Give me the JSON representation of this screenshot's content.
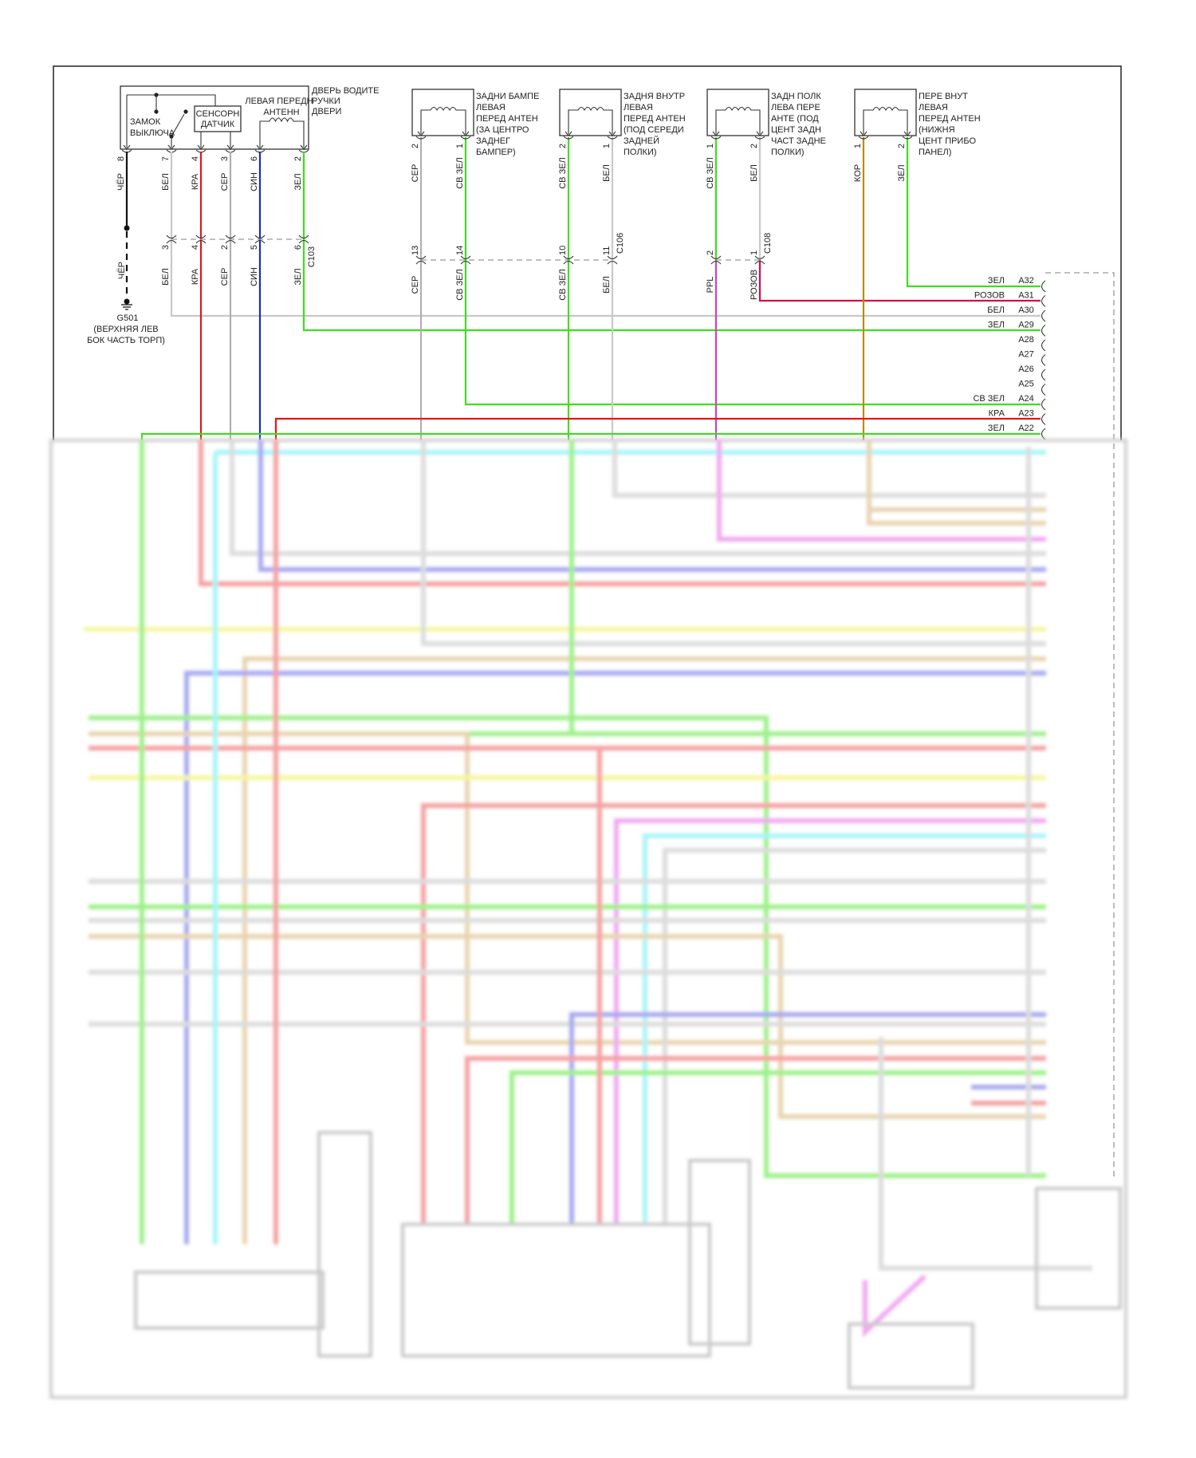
{
  "door_handle": {
    "title": [
      "ДВЕРЬ ВОДИТЕ",
      "РУЧКИ",
      "ДВЕРИ"
    ],
    "antenna": [
      "ЛЕВАЯ ПЕРЕДН",
      "АНТЕНН"
    ],
    "sensor": [
      "СЕНСОРН",
      "ДАТЧИК"
    ],
    "lock": [
      "ЗАМОК",
      "ВЫКЛЮЧА"
    ],
    "pins": [
      {
        "num": "8",
        "wire": "ЧЁР"
      },
      {
        "num": "7",
        "wire": "БЕЛ"
      },
      {
        "num": "4",
        "wire": "КРА"
      },
      {
        "num": "3",
        "wire": "СЕР"
      },
      {
        "num": "6",
        "wire": "СИН"
      },
      {
        "num": "2",
        "wire": "ЗЕЛ"
      }
    ]
  },
  "c103": {
    "name": "C103",
    "pins": [
      {
        "num": "3",
        "wire": "БЕЛ"
      },
      {
        "num": "4",
        "wire": "КРА"
      },
      {
        "num": "2",
        "wire": "СЕР"
      },
      {
        "num": "5",
        "wire": "СИН"
      },
      {
        "num": "6",
        "wire": "ЗЕЛ"
      }
    ]
  },
  "ground": {
    "wire": "ЧЁР",
    "name": "G501",
    "location": [
      "(ВЕРХНЯЯ ЛЕВ",
      "БОК ЧАСТЬ ТОРП)"
    ]
  },
  "antennas": [
    {
      "label": [
        "ЗАДНИ БАМПЕ",
        "ЛЕВАЯ",
        "ПЕРЕД АНТЕН",
        "(ЗА ЦЕНТРО",
        "ЗАДНЕГ",
        "БАМПЕР)"
      ],
      "pins": [
        {
          "num": "2",
          "wire": "СЕР"
        },
        {
          "num": "1",
          "wire": "СВ ЗЕЛ"
        }
      ],
      "connector": {
        "name": "",
        "pins": [
          {
            "num": "13",
            "wire": "СЕР"
          },
          {
            "num": "14",
            "wire": "СВ ЗЕЛ"
          }
        ]
      }
    },
    {
      "label": [
        "ЗАДНЯ ВНУТР",
        "ЛЕВАЯ",
        "ПЕРЕД АНТЕН",
        "(ПОД СЕРЕДИ",
        "ЗАДНЕЙ",
        "ПОЛКИ)"
      ],
      "pins": [
        {
          "num": "2",
          "wire": "СВ ЗЕЛ"
        },
        {
          "num": "1",
          "wire": "БЕЛ"
        }
      ],
      "connector": {
        "name": "C106",
        "pins": [
          {
            "num": "10",
            "wire": "СВ ЗЕЛ"
          },
          {
            "num": "11",
            "wire": "БЕЛ"
          }
        ]
      }
    },
    {
      "label": [
        "ЗАДН ПОЛК",
        "ЛЕВА ПЕРЕ",
        "АНТЕ (ПОД",
        "ЦЕНТ ЗАДН",
        "ЧАСТ ЗАДНЕ",
        "ПОЛКИ)"
      ],
      "pins": [
        {
          "num": "1",
          "wire": "СВ ЗЕЛ"
        },
        {
          "num": "2",
          "wire": "БЕЛ"
        }
      ],
      "connector": {
        "name": "C108",
        "pins": [
          {
            "num": "2",
            "wire": "PPL"
          },
          {
            "num": "1",
            "wire": "РОЗОВ"
          }
        ]
      }
    },
    {
      "label": [
        "ПЕРЕ ВНУТ",
        "ЛЕВАЯ",
        "ПЕРЕД АНТЕН",
        "(НИЖНЯ",
        "ЦЕНТ ПРИБО",
        "ПАНЕЛ)"
      ],
      "pins": [
        {
          "num": "1",
          "wire": "КОР"
        },
        {
          "num": "2",
          "wire": "ЗЕЛ"
        }
      ]
    }
  ],
  "module_connector": {
    "rows": [
      {
        "color": "ЗЕЛ",
        "pin": "A32"
      },
      {
        "color": "РОЗОВ",
        "pin": "A31"
      },
      {
        "color": "БЕЛ",
        "pin": "A30"
      },
      {
        "color": "ЗЕЛ",
        "pin": "A29"
      },
      {
        "color": "",
        "pin": "A28"
      },
      {
        "color": "",
        "pin": "A27"
      },
      {
        "color": "",
        "pin": "A26"
      },
      {
        "color": "",
        "pin": "A25"
      },
      {
        "color": "СВ ЗЕЛ",
        "pin": "A24"
      },
      {
        "color": "КРА",
        "pin": "A23"
      },
      {
        "color": "ЗЕЛ",
        "pin": "A22"
      }
    ]
  },
  "wire_colors": {
    "black": "#111111",
    "white": "#c8c8c8",
    "red": "#e01818",
    "gray": "#b0b0b0",
    "blue": "#1c2cc0",
    "green": "#3ede1e",
    "purple": "#cc40cc",
    "pink": "#d0104a",
    "brown": "#b88a10"
  }
}
